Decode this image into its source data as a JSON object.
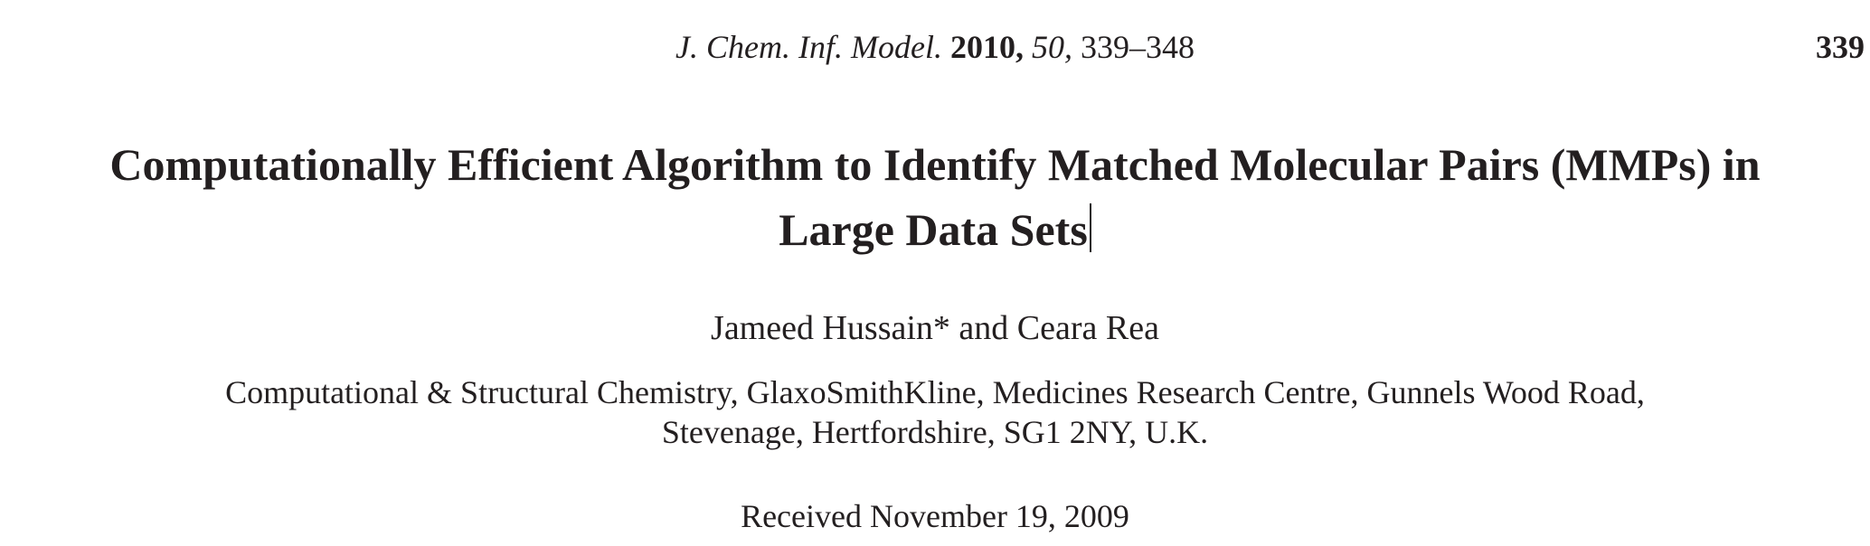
{
  "running_head": {
    "journal": "J. Chem. Inf. Model.",
    "year": "2010,",
    "volume": "50,",
    "pages": "339–348",
    "page_number": "339"
  },
  "article": {
    "title_line_1": "Computationally Efficient Algorithm to Identify Matched Molecular Pairs (MMPs) in",
    "title_line_2": "Large Data Sets",
    "authors": "Jameed Hussain* and Ceara Rea",
    "affiliation_line_1": "Computational & Structural Chemistry, GlaxoSmithKline, Medicines Research Centre, Gunnels Wood Road,",
    "affiliation_line_2": "Stevenage, Hertfordshire, SG1 2NY, U.K.",
    "received": "Received November 19, 2009"
  }
}
